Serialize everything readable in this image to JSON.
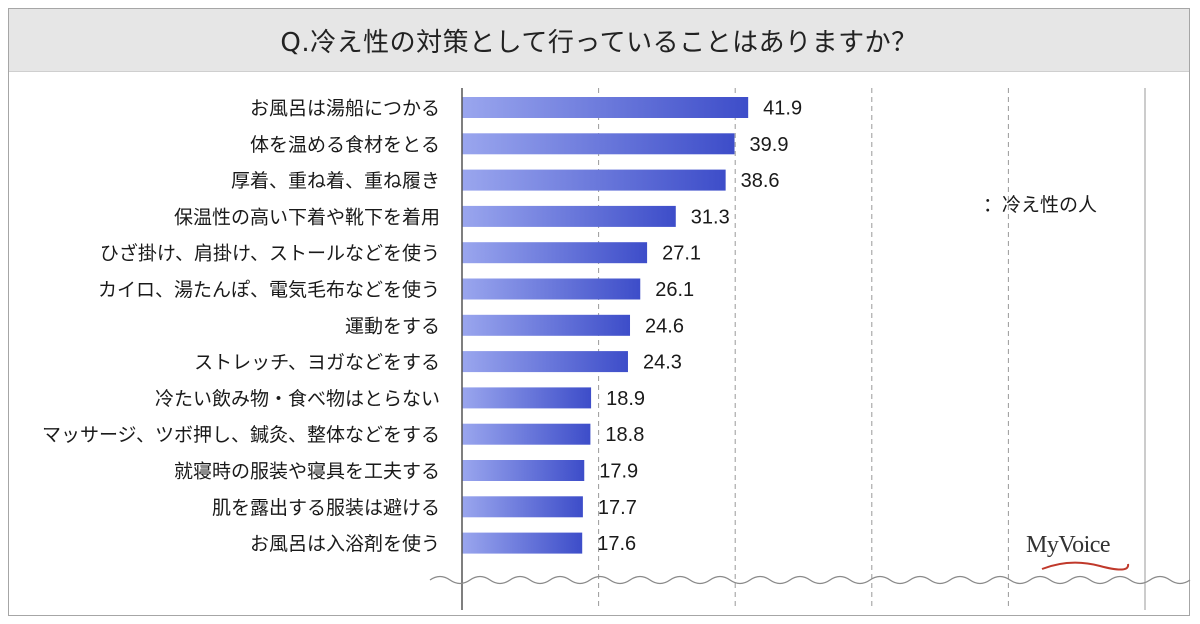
{
  "title": "Q.冷え性の対策として行っていることはありますか？",
  "legend_text": "：冷え性の人",
  "logo_text": "MyVoice",
  "colors": {
    "bar_dark": "#3d4dc9",
    "bar_light": "#9aa6ee",
    "grid": "#9a9a9a",
    "title_bg": "#e6e6e6"
  },
  "chart_data": {
    "type": "bar",
    "orientation": "horizontal",
    "categories": [
      "お風呂は湯船につかる",
      "体を温める食材をとる",
      "厚着、重ね着、重ね履き",
      "保温性の高い下着や靴下を着用",
      "ひざ掛け、肩掛け、ストールなどを使う",
      "カイロ、湯たんぽ、電気毛布などを使う",
      "運動をする",
      "ストレッチ、ヨガなどをする",
      "冷たい飲み物・食べ物はとらない",
      "マッサージ、ツボ押し、鍼灸、整体などをする",
      "就寝時の服装や寝具を工夫する",
      "肌を露出する服装は避ける",
      "お風呂は入浴剤を使う"
    ],
    "series": [
      {
        "name": "冷え性の人",
        "values": [
          41.9,
          39.9,
          38.6,
          31.3,
          27.1,
          26.1,
          24.6,
          24.3,
          18.9,
          18.8,
          17.9,
          17.7,
          17.6
        ]
      }
    ],
    "value_labels": [
      "41.9",
      "39.9",
      "38.6",
      "31.3",
      "27.1",
      "26.1",
      "24.6",
      "24.3",
      "18.9",
      "18.8",
      "17.9",
      "17.7",
      "17.6"
    ],
    "xlim": [
      0,
      100
    ],
    "grid": true,
    "gridline_values": [
      20,
      40,
      60,
      80
    ],
    "legend_position": "right"
  }
}
